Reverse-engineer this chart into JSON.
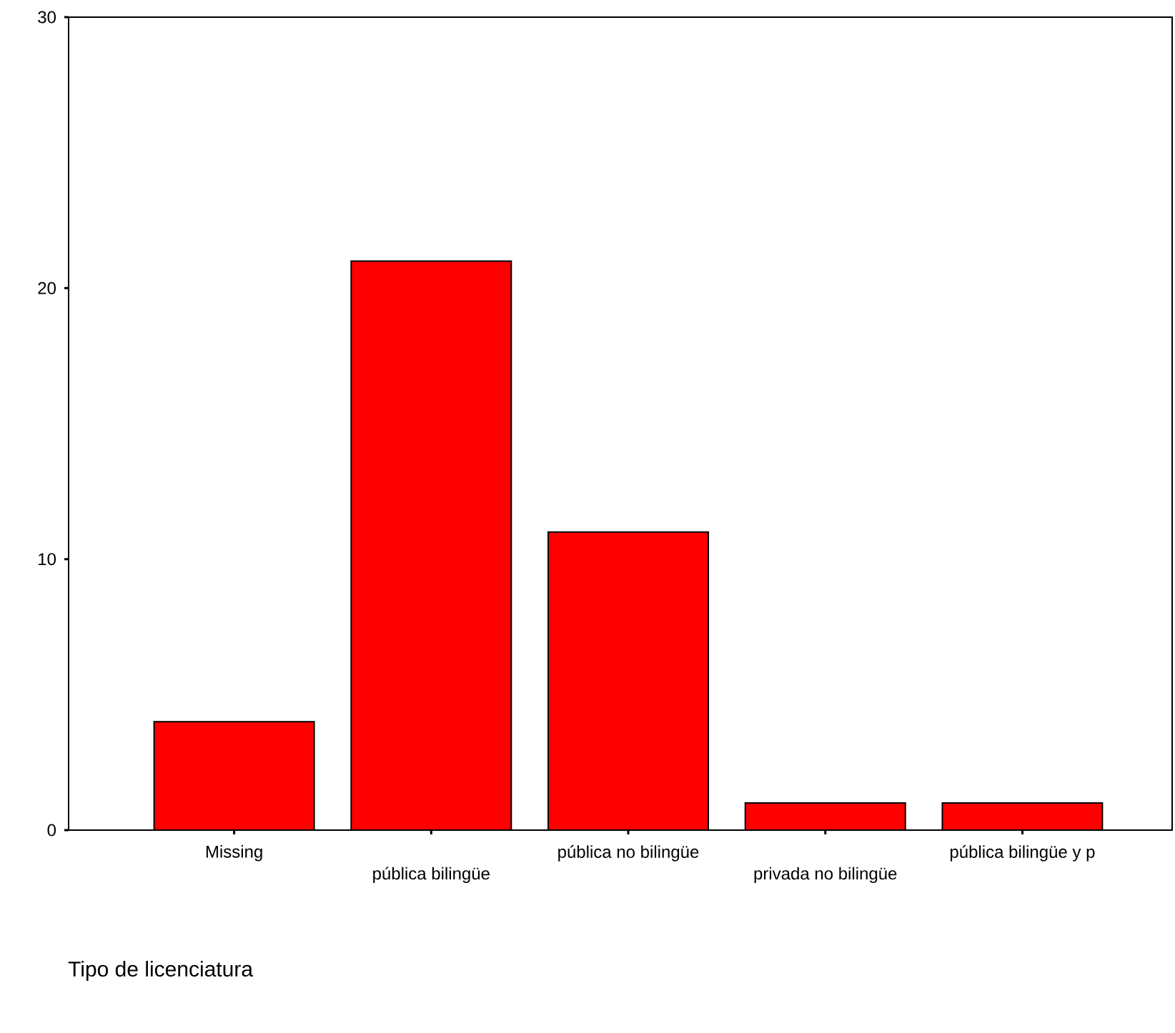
{
  "chart_data": {
    "type": "bar",
    "xlabel": "Tipo de licenciatura",
    "categories": [
      "Missing",
      "pública bilingüe",
      "pública no bilingüe",
      "privada no bilingüe",
      "pública bilingüe y p"
    ],
    "values": [
      4,
      21,
      11,
      1,
      1
    ],
    "color": "#ff0000",
    "ylim": [
      0,
      30
    ],
    "yticks": [
      0,
      10,
      20,
      30
    ],
    "grid": false
  }
}
